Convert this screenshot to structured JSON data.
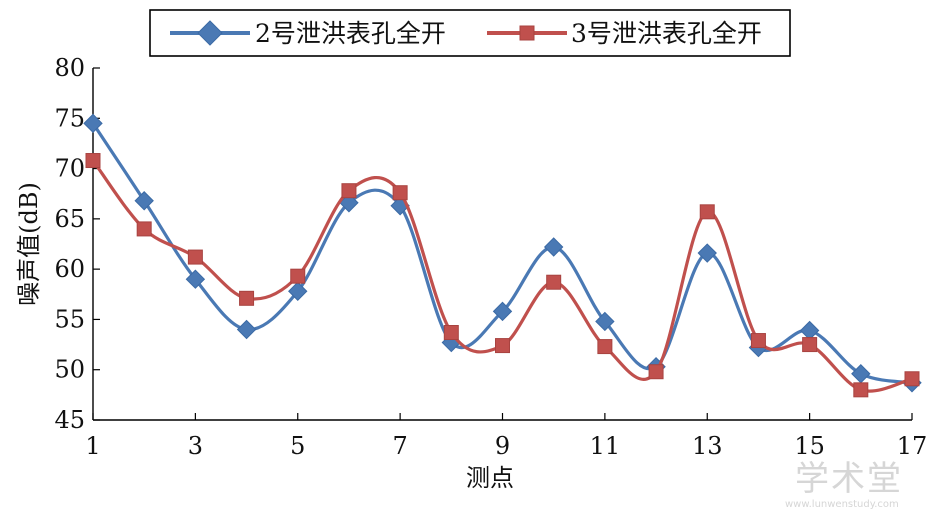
{
  "chart_data": {
    "type": "line",
    "x": [
      1,
      2,
      3,
      4,
      5,
      6,
      7,
      8,
      9,
      10,
      11,
      12,
      13,
      14,
      15,
      16,
      17
    ],
    "xticks": [
      "1",
      "3",
      "5",
      "7",
      "9",
      "11",
      "13",
      "15",
      "17"
    ],
    "xtick_values": [
      1,
      3,
      5,
      7,
      9,
      11,
      13,
      15,
      17
    ],
    "yticks": [
      "45",
      "50",
      "55",
      "60",
      "65",
      "70",
      "75",
      "80"
    ],
    "ytick_values": [
      45,
      50,
      55,
      60,
      65,
      70,
      75,
      80
    ],
    "xlim": [
      1,
      17
    ],
    "ylim": [
      45,
      80
    ],
    "xlabel": "测点",
    "ylabel": "噪声值(dB)",
    "grid": false,
    "legend_position": "top",
    "smooth": true,
    "series": [
      {
        "name": "2号泄洪表孔全开",
        "color": "#4a79b4",
        "marker": "diamond",
        "values": [
          74.5,
          66.8,
          59.0,
          54.0,
          57.8,
          66.6,
          66.3,
          52.7,
          55.8,
          62.2,
          54.8,
          50.3,
          61.6,
          52.2,
          53.9,
          49.6,
          48.7
        ]
      },
      {
        "name": "3号泄洪表孔全开",
        "color": "#c0504d",
        "marker": "square",
        "values": [
          70.8,
          64.0,
          61.2,
          57.1,
          59.3,
          67.8,
          67.6,
          53.7,
          52.4,
          58.7,
          52.3,
          49.8,
          65.7,
          52.9,
          52.5,
          48.0,
          49.1
        ]
      }
    ]
  },
  "watermark": {
    "text": "学术堂",
    "url": "www.lunwenstudy.com"
  }
}
